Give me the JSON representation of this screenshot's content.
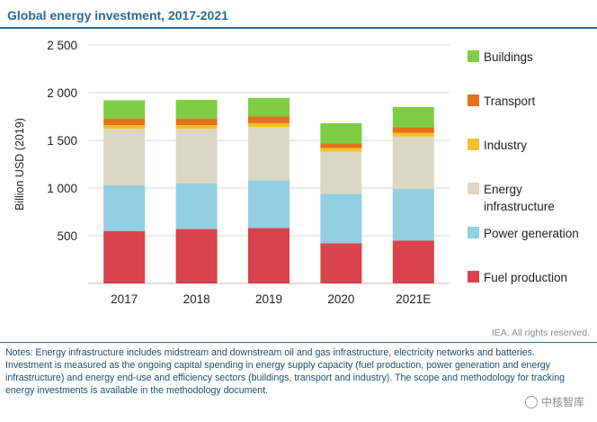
{
  "chart_data": {
    "type": "bar",
    "stacked": true,
    "title": "Global energy investment, 2017-2021",
    "ylabel": "Billion USD (2019)",
    "xlabel": "",
    "ylim": [
      0,
      2500
    ],
    "yticks": [
      500,
      1000,
      1500,
      2000,
      2500
    ],
    "ytick_labels": [
      "500",
      "1 000",
      "1 500",
      "2 000",
      "2 500"
    ],
    "grid": true,
    "legend_position": "right",
    "categories": [
      "2017",
      "2018",
      "2019",
      "2020",
      "2021E"
    ],
    "series": [
      {
        "name": "Fuel production",
        "color": "#d9434b",
        "values": [
          550,
          570,
          580,
          420,
          450
        ]
      },
      {
        "name": "Power generation",
        "color": "#92cfe0",
        "values": [
          480,
          480,
          500,
          520,
          540
        ]
      },
      {
        "name": "Energy infrastructure",
        "color": "#dcd8c5",
        "values": [
          590,
          570,
          560,
          440,
          550
        ]
      },
      {
        "name": "Industry",
        "color": "#f4c12a",
        "values": [
          40,
          40,
          40,
          40,
          40
        ]
      },
      {
        "name": "Transport",
        "color": "#e4711b",
        "values": [
          70,
          70,
          70,
          50,
          60
        ]
      },
      {
        "name": "Buildings",
        "color": "#7fcc45",
        "values": [
          190,
          195,
          195,
          210,
          210
        ]
      }
    ]
  },
  "credit": "IEA. All rights reserved.",
  "notes": {
    "line1": "Notes: Energy infrastructure includes midstream and downstream oil and gas infrastructure, electricity networks and batteries.",
    "line2": "Investment is measured as the ongoing capital spending in energy supply capacity (fuel production, power generation and energy infrastructure) and energy end-use and efficiency sectors (buildings, transport and industry). The scope and methodology for tracking energy investments is available in the methodology document."
  },
  "watermark": "中核智库",
  "colors": {
    "title": "#2a6b8c",
    "notes": "#1f4e6b",
    "axis": "#bfbfbf"
  }
}
